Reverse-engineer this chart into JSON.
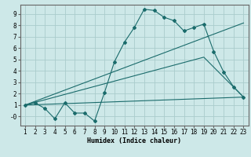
{
  "xlabel": "Humidex (Indice chaleur)",
  "ylabel": "",
  "bg_color": "#cde8e8",
  "grid_color": "#aacccc",
  "line_color": "#1a6b6b",
  "x_ticks": [
    1,
    2,
    3,
    4,
    5,
    6,
    7,
    8,
    9,
    10,
    11,
    12,
    13,
    14,
    15,
    16,
    17,
    18,
    19,
    20,
    21,
    22,
    23
  ],
  "y_ticks": [
    0,
    1,
    2,
    3,
    4,
    5,
    6,
    7,
    8,
    9
  ],
  "ylim": [
    -0.8,
    9.8
  ],
  "xlim": [
    0.5,
    23.5
  ],
  "series1_x": [
    1,
    2,
    3,
    4,
    5,
    6,
    7,
    8,
    9,
    10,
    11,
    12,
    13,
    14,
    15,
    16,
    17,
    18,
    19,
    20,
    21,
    22,
    23
  ],
  "series1_y": [
    1.0,
    1.2,
    0.7,
    -0.2,
    1.2,
    0.3,
    0.3,
    -0.4,
    2.1,
    4.8,
    6.5,
    7.8,
    9.4,
    9.3,
    8.7,
    8.4,
    7.5,
    7.8,
    8.1,
    5.7,
    3.9,
    2.6,
    1.7
  ],
  "series2_x": [
    1,
    23
  ],
  "series2_y": [
    1.0,
    8.2
  ],
  "series3_x": [
    1,
    23
  ],
  "series3_y": [
    1.0,
    1.7
  ],
  "series4_x": [
    1,
    19,
    23
  ],
  "series4_y": [
    1.0,
    5.2,
    1.7
  ]
}
